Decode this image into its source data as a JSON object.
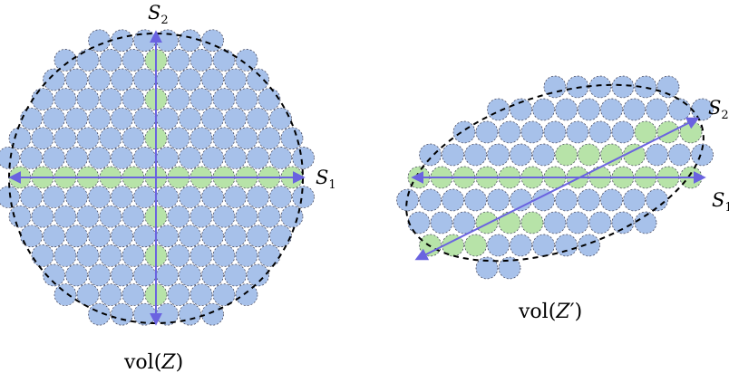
{
  "colors": {
    "circle_fill": "#a7c1ea",
    "highlight_fill": "#b7e3a8",
    "circle_stroke": "#3c3c50",
    "arrow": "#6a63e0",
    "ellipse": "#000000"
  },
  "left": {
    "axis_h_label": {
      "main": "S",
      "sub": "1"
    },
    "axis_v_label": {
      "main": "S",
      "sub": "2"
    },
    "caption": {
      "prefix": "vol(",
      "var": "Z",
      "suffix": ")"
    }
  },
  "right": {
    "top_label": {
      "main": "S",
      "sub": "2",
      "prime": "′"
    },
    "mid_label": {
      "main": "S",
      "sub": "1",
      "prime": "′"
    },
    "caption": {
      "prefix": "vol(",
      "var": "Z",
      "prime": "′",
      "suffix": ")"
    }
  }
}
